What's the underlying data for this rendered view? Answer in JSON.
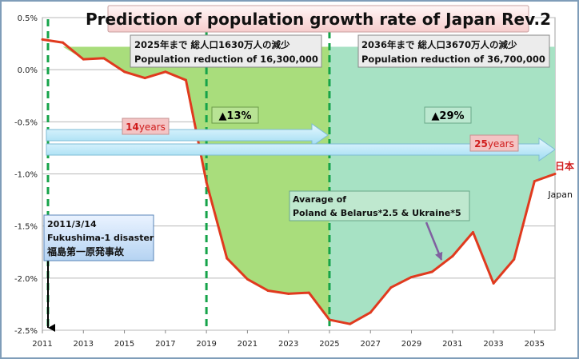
{
  "chart_data": {
    "type": "area",
    "title": "Prediction of population growth rate of Japan Rev.2",
    "xlabel": "",
    "ylabel": "",
    "xlim": [
      2011,
      2036
    ],
    "ylim": [
      -2.5,
      0.5
    ],
    "x_ticks": [
      "2011",
      "2013",
      "2015",
      "2017",
      "2019",
      "2021",
      "2023",
      "2025",
      "2027",
      "2029",
      "2031",
      "2033",
      "2035"
    ],
    "y_ticks": [
      "0.5%",
      "0.0%",
      "-0.5%",
      "-1.0%",
      "-1.5%",
      "-2.0%",
      "-2.5%"
    ],
    "series": [
      {
        "name": "Japan",
        "color": "#e03a1e",
        "x": [
          2011,
          2012,
          2013,
          2014,
          2015,
          2016,
          2017,
          2018,
          2019,
          2020,
          2021,
          2022,
          2023,
          2024,
          2025,
          2026,
          2027,
          2028,
          2029,
          2030,
          2031,
          2032,
          2033,
          2034,
          2035,
          2036
        ],
        "values": [
          0.29,
          0.26,
          0.1,
          0.11,
          -0.02,
          -0.08,
          -0.02,
          -0.1,
          -1.08,
          -1.81,
          -2.01,
          -2.12,
          -2.15,
          -2.14,
          -2.4,
          -2.44,
          -2.33,
          -2.09,
          -1.99,
          -1.94,
          -1.79,
          -1.56,
          -2.05,
          -1.82,
          -1.07,
          -1.0
        ]
      }
    ],
    "shaded_regions": [
      {
        "name": "2019-2025 reduction",
        "x_from": 2019,
        "x_to": 2025,
        "top": 0.22,
        "color": "#a9dd7c"
      },
      {
        "name": "2025-2036 reduction",
        "x_from": 2025,
        "x_to": 2036,
        "top": 0.22,
        "color": "#a7e2c4"
      }
    ],
    "vertical_lines": [
      2011,
      2019,
      2025
    ],
    "annotations": {
      "box1_line1": "2025年まで 総人口1630万人の減少",
      "box1_line2": "Population reduction of 16,300,000",
      "box2_line1": "2036年まで 総人口3670万人の減少",
      "box2_line2": "Population reduction of 36,700,000",
      "pct1": "▲13%",
      "pct2": "▲29%",
      "span1_num": "14",
      "span1_unit": "years",
      "span2_num": "25",
      "span2_unit": "years",
      "avg_line1": "Avarage of",
      "avg_line2": "Poland & Belarus*2.5 & Ukraine*5",
      "fuku_line1": "2011/3/14",
      "fuku_line2": "Fukushima-1 disaster",
      "fuku_line3": "福島第一原発事故",
      "label_jp": "日本",
      "label_en": "Japan"
    }
  }
}
